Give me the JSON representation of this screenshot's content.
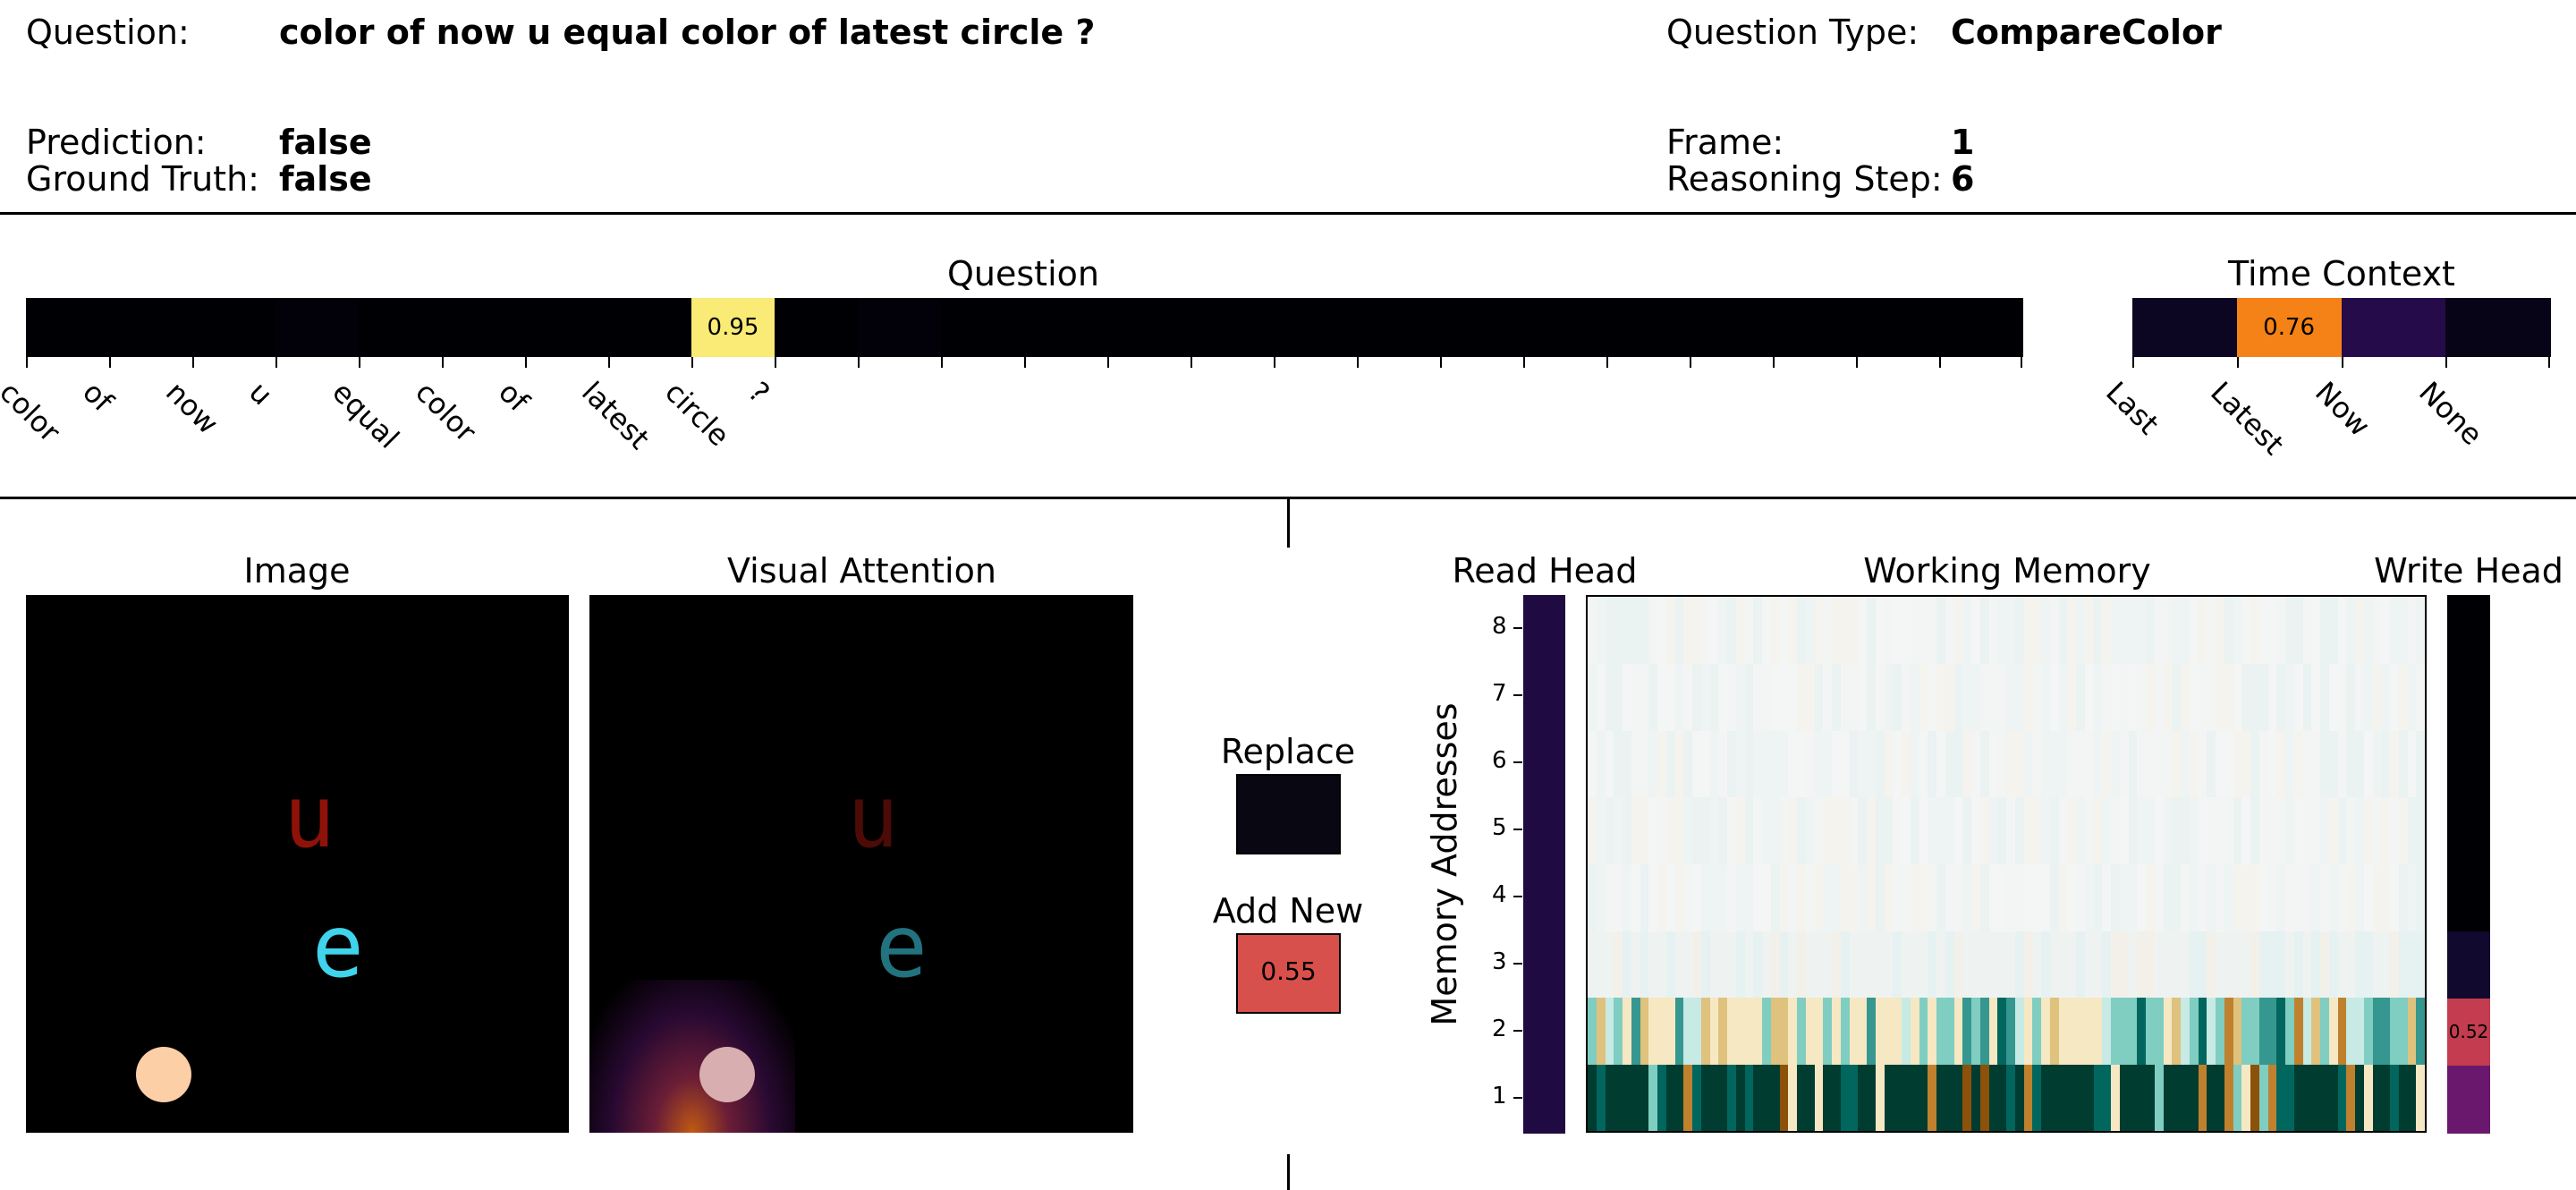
{
  "header": {
    "question_label": "Question:",
    "question_value": "color of now u equal color of latest circle ?",
    "question_type_label": "Question Type:",
    "question_type_value": "CompareColor",
    "prediction_label": "Prediction:",
    "prediction_value": "false",
    "ground_truth_label": "Ground Truth:",
    "ground_truth_value": "false",
    "frame_label": "Frame:",
    "frame_value": "1",
    "reasoning_step_label": "Reasoning Step:",
    "reasoning_step_value": "6"
  },
  "panels": {
    "image_title": "Image",
    "visual_attention_title": "Visual Attention",
    "image_glyph_u": "u",
    "image_glyph_e": "e",
    "replace_label": "Replace",
    "add_new_label": "Add New",
    "add_new_value": "0.55",
    "replace_color": "#080712",
    "add_new_color": "#d8504b"
  },
  "chart_data": [
    {
      "type": "heatmap",
      "title": "Question",
      "categories": [
        "color",
        "of",
        "now",
        "u",
        "equal",
        "color",
        "of",
        "latest",
        "circle",
        "?",
        "",
        "",
        "",
        "",
        "",
        "",
        "",
        "",
        "",
        "",
        "",
        "",
        "",
        ""
      ],
      "values": [
        0.0,
        0.0,
        0.0,
        0.01,
        0.0,
        0.0,
        0.0,
        0.0,
        0.95,
        0.0,
        0.01,
        0.0,
        0.0,
        0.0,
        0.0,
        0.0,
        0.0,
        0.0,
        0.0,
        0.0,
        0.0,
        0.0,
        0.0,
        0.0
      ],
      "annotations": [
        {
          "index": 8,
          "text": "0.95"
        }
      ]
    },
    {
      "type": "heatmap",
      "title": "Time Context",
      "categories": [
        "Last",
        "Latest",
        "Now",
        "None"
      ],
      "values": [
        0.06,
        0.76,
        0.14,
        0.04
      ],
      "annotations": [
        {
          "index": 1,
          "text": "0.76"
        }
      ]
    },
    {
      "type": "heatmap",
      "title": "Read Head",
      "ylabel": "Memory Addresses",
      "yticks": [
        "1",
        "2",
        "3",
        "4",
        "5",
        "6",
        "7",
        "8"
      ],
      "values": [
        0.12,
        0.12,
        0.12,
        0.12,
        0.12,
        0.12,
        0.12,
        0.12
      ]
    },
    {
      "type": "heatmap",
      "title": "Working Memory",
      "rows": 8,
      "columns": 96
    },
    {
      "type": "heatmap",
      "title": "Write Head",
      "values": [
        0.3,
        0.52,
        0.08,
        0.0,
        0.0,
        0.0,
        0.0,
        0.0
      ],
      "annotations": [
        {
          "index": 1,
          "text": "0.52"
        }
      ]
    }
  ]
}
